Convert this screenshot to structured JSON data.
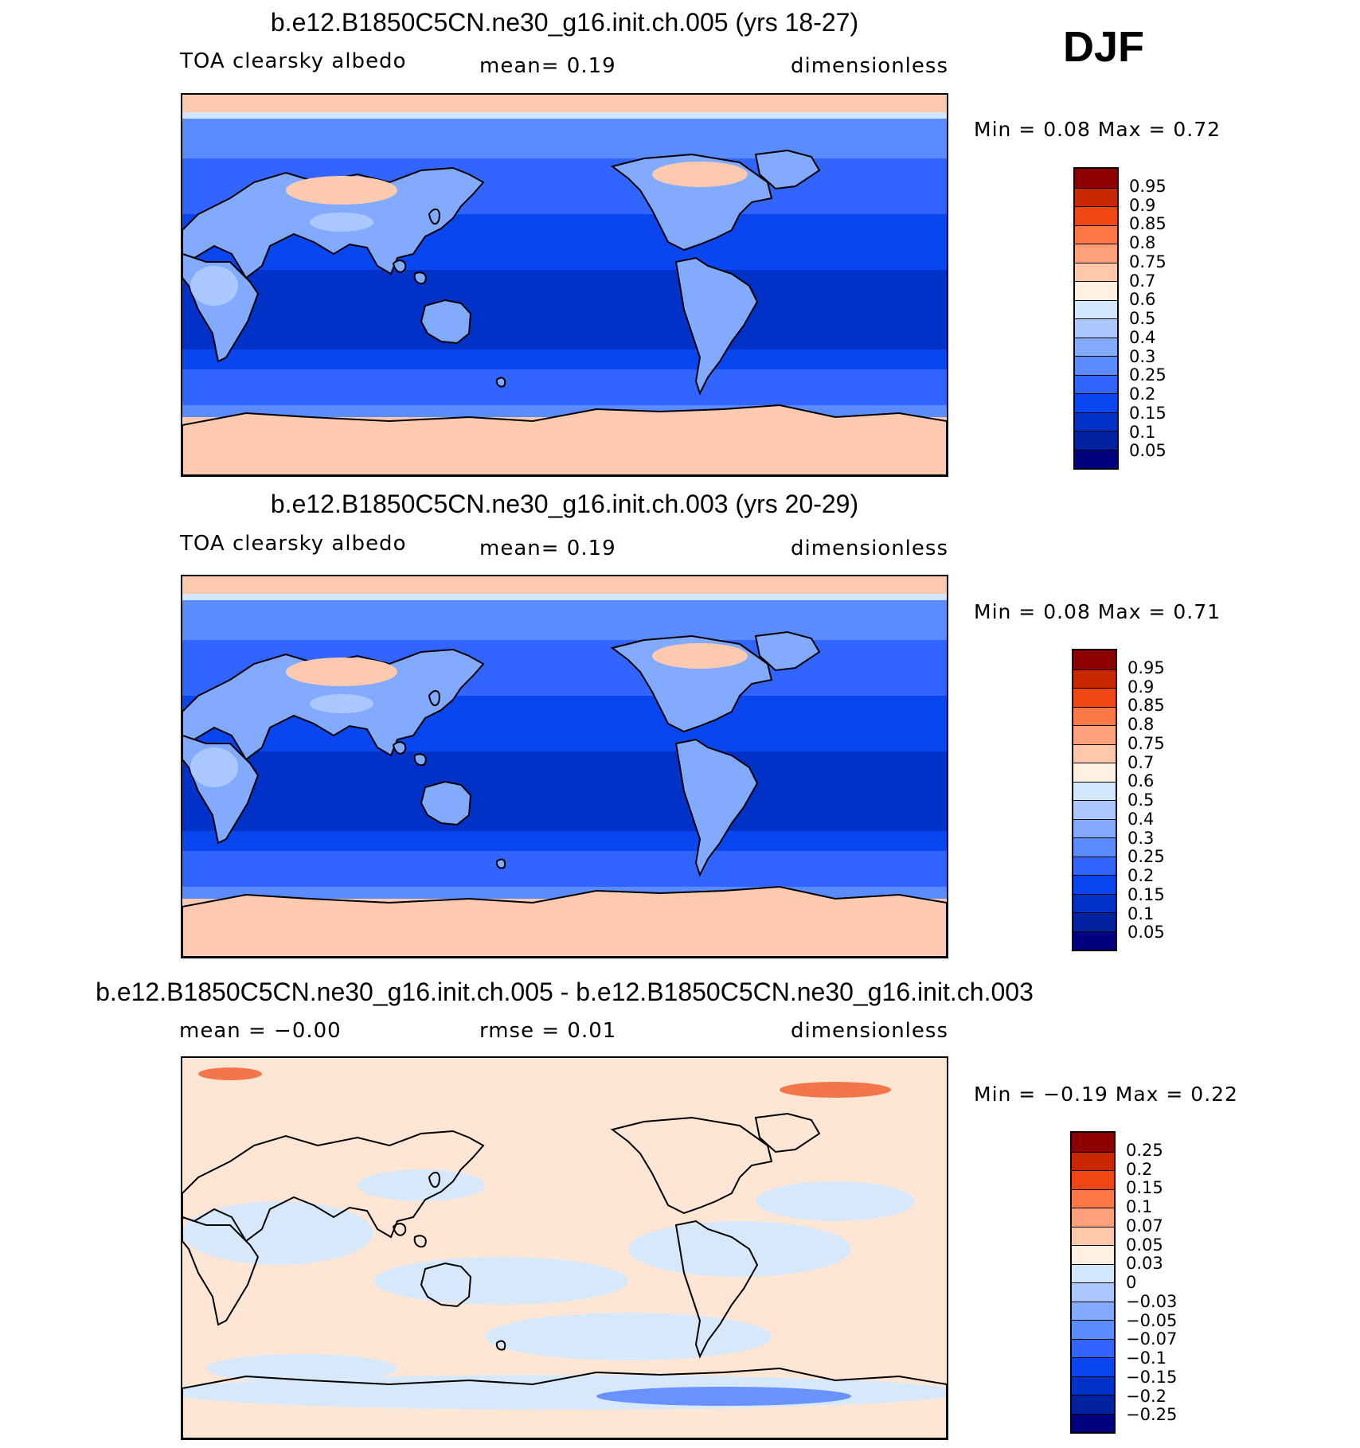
{
  "season": "DJF",
  "colors": {
    "abs_scale": [
      "#000080",
      "#0022a0",
      "#0032c8",
      "#0a46f0",
      "#3264ff",
      "#5a8cff",
      "#82aaff",
      "#aac8ff",
      "#d2e6ff",
      "#fff0e1",
      "#ffc8aa",
      "#ffa07a",
      "#ff7846",
      "#f04614",
      "#c82800",
      "#8c0000"
    ],
    "diff_scale": [
      "#000080",
      "#0022a0",
      "#0032c8",
      "#0a46f0",
      "#3264ff",
      "#5a8cff",
      "#82aaff",
      "#aac8ff",
      "#d2e6ff",
      "#fff0e1",
      "#ffc8aa",
      "#ffa07a",
      "#ff7846",
      "#f04614",
      "#c82800",
      "#8c0000"
    ],
    "field": {
      "tropics": "#0032c8",
      "subtropics": "#0a46f0",
      "midlat": "#3264ff",
      "highlat": "#5a8cff",
      "polar": "#fdcab0",
      "polar_edge": "#d2e6ff",
      "land_light": "#aac8ff",
      "land_mid": "#82aaff",
      "diff_pos": "#ffe6d4",
      "diff_neg": "#d8e8fb",
      "diff_red": "#f05a28",
      "diff_blue": "#3c6eff"
    }
  },
  "panels": [
    {
      "title": "b.e12.B1850C5CN.ne30_g16.init.ch.005 (yrs 18-27)",
      "left_text": "TOA clearsky albedo",
      "center_text": "mean=    0.19",
      "right_text": "dimensionless",
      "minmax": "Min =     0.08  Max =     0.72",
      "cbar_labels": [
        "0.95",
        "0.9",
        "0.85",
        "0.8",
        "0.75",
        "0.7",
        "0.6",
        "0.5",
        "0.4",
        "0.3",
        "0.25",
        "0.2",
        "0.15",
        "0.1",
        "0.05"
      ]
    },
    {
      "title": "b.e12.B1850C5CN.ne30_g16.init.ch.003 (yrs 20-29)",
      "left_text": "TOA clearsky albedo",
      "center_text": "mean=    0.19",
      "right_text": "dimensionless",
      "minmax": "Min =     0.08  Max =     0.71",
      "cbar_labels": [
        "0.95",
        "0.9",
        "0.85",
        "0.8",
        "0.75",
        "0.7",
        "0.6",
        "0.5",
        "0.4",
        "0.3",
        "0.25",
        "0.2",
        "0.15",
        "0.1",
        "0.05"
      ]
    },
    {
      "title": "b.e12.B1850C5CN.ne30_g16.init.ch.005 - b.e12.B1850C5CN.ne30_g16.init.ch.003",
      "left_text": "mean =   −0.00",
      "center_text": "rmse =    0.01",
      "right_text": "dimensionless",
      "minmax": "Min =   −0.19  Max =     0.22",
      "cbar_labels": [
        "0.25",
        "0.2",
        "0.15",
        "0.1",
        "0.07",
        "0.05",
        "0.03",
        "0",
        "−0.03",
        "−0.05",
        "−0.07",
        "−0.1",
        "−0.15",
        "−0.2",
        "−0.25"
      ]
    }
  ]
}
